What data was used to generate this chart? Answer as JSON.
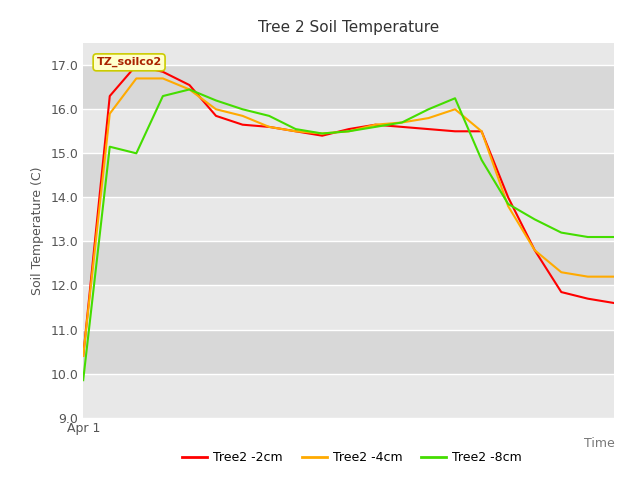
{
  "title": "Tree 2 Soil Temperature",
  "xlabel": "Time",
  "ylabel": "Soil Temperature (C)",
  "annotation": "TZ_soilco2",
  "xlim": [
    0,
    20
  ],
  "ylim": [
    9.0,
    17.5
  ],
  "yticks": [
    9.0,
    10.0,
    11.0,
    12.0,
    13.0,
    14.0,
    15.0,
    16.0,
    17.0
  ],
  "x_tick_labels": [
    "Apr 1"
  ],
  "x_tick_pos": [
    0
  ],
  "plot_bg": "#e8e8e8",
  "band_color_light": "#ebebeb",
  "band_color_dark": "#d8d8d8",
  "series": {
    "Tree2 -2cm": {
      "color": "#ff0000",
      "x": [
        0,
        1,
        2,
        3,
        4,
        5,
        6,
        7,
        8,
        9,
        10,
        11,
        12,
        13,
        14,
        15,
        16,
        17,
        18,
        19,
        20
      ],
      "y": [
        10.4,
        16.3,
        17.0,
        16.85,
        16.55,
        15.85,
        15.65,
        15.6,
        15.5,
        15.4,
        15.55,
        15.65,
        15.6,
        15.55,
        15.5,
        15.5,
        14.0,
        12.8,
        11.85,
        11.7,
        11.6
      ]
    },
    "Tree2 -4cm": {
      "color": "#ffaa00",
      "x": [
        0,
        1,
        2,
        3,
        4,
        5,
        6,
        7,
        8,
        9,
        10,
        11,
        12,
        13,
        14,
        15,
        16,
        17,
        18,
        19,
        20
      ],
      "y": [
        10.4,
        15.9,
        16.7,
        16.7,
        16.45,
        16.0,
        15.85,
        15.6,
        15.5,
        15.45,
        15.5,
        15.65,
        15.7,
        15.8,
        16.0,
        15.5,
        13.8,
        12.8,
        12.3,
        12.2,
        12.2
      ]
    },
    "Tree2 -8cm": {
      "color": "#44dd00",
      "x": [
        0,
        1,
        2,
        3,
        4,
        5,
        6,
        7,
        8,
        9,
        10,
        11,
        12,
        13,
        14,
        15,
        16,
        17,
        18,
        19,
        20
      ],
      "y": [
        9.85,
        15.15,
        15.0,
        16.3,
        16.45,
        16.2,
        16.0,
        15.85,
        15.55,
        15.45,
        15.5,
        15.6,
        15.7,
        16.0,
        16.25,
        14.85,
        13.85,
        13.5,
        13.2,
        13.1,
        13.1
      ]
    }
  },
  "legend_labels": [
    "Tree2 -2cm",
    "Tree2 -4cm",
    "Tree2 -8cm"
  ],
  "legend_colors": [
    "#ff0000",
    "#ffaa00",
    "#44dd00"
  ]
}
